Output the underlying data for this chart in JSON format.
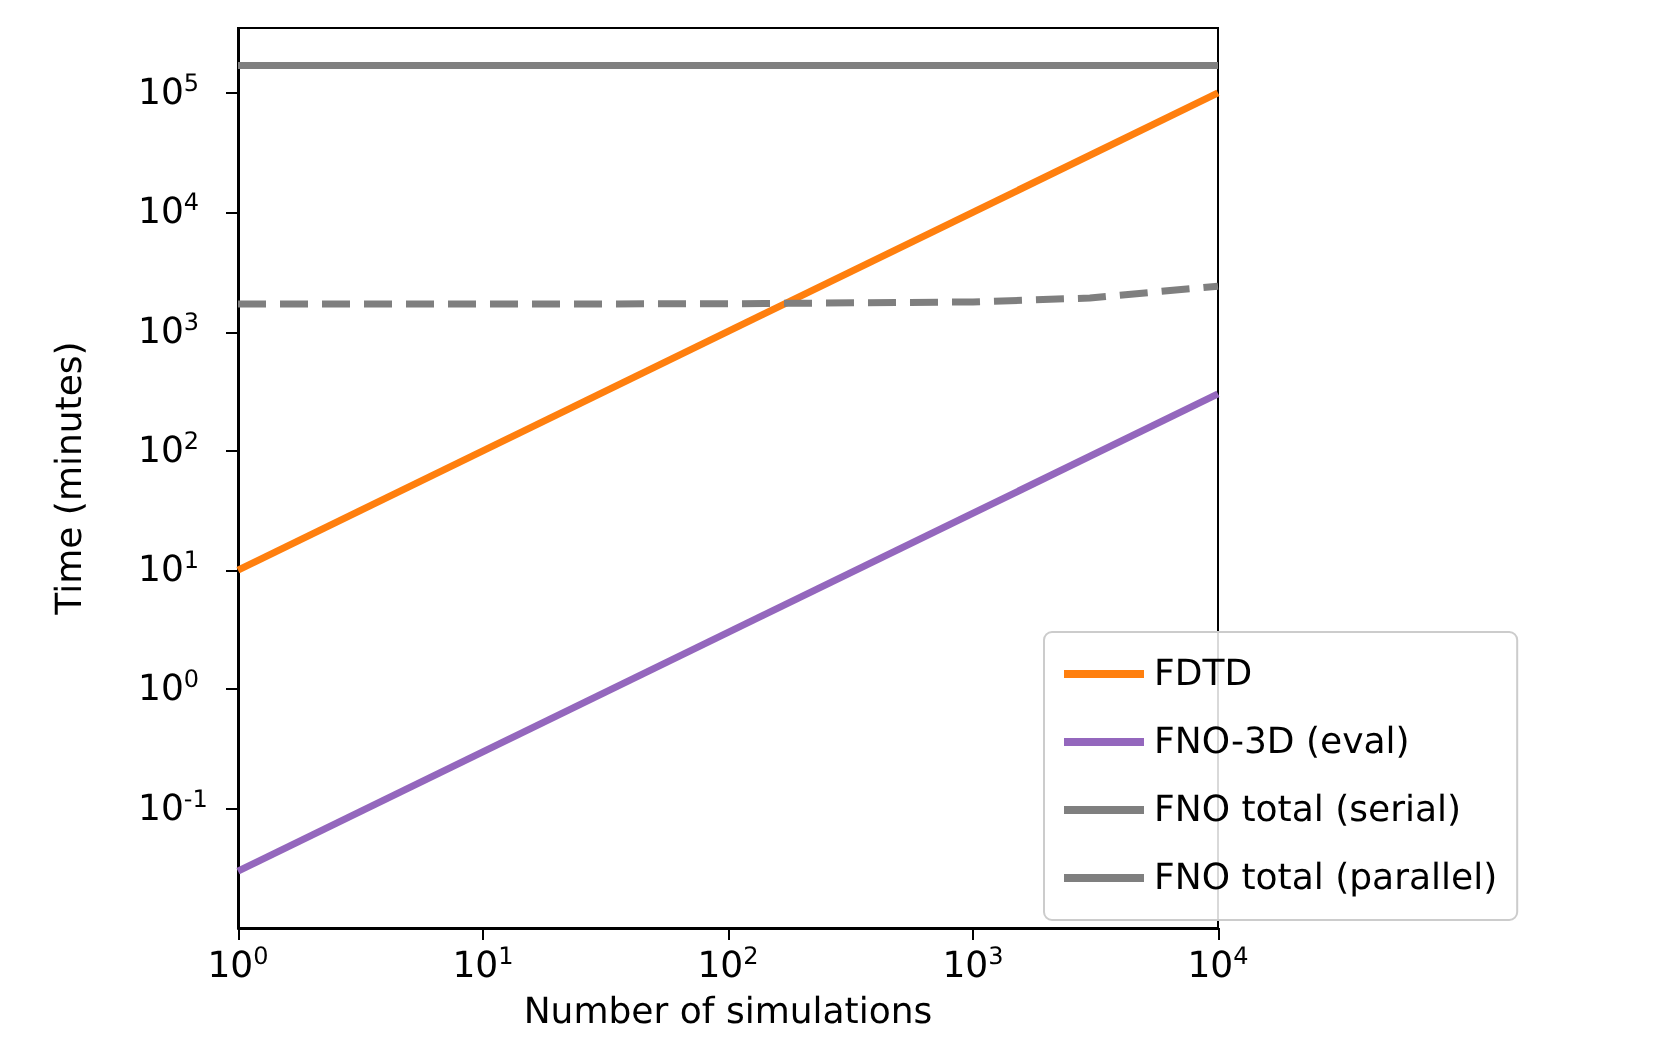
{
  "chart_data": {
    "type": "line",
    "xlabel": "Number of simulations",
    "ylabel": "Time (minutes)",
    "log": "xy",
    "grid": false,
    "legend": "bottom right",
    "marker": "none",
    "xlim": [
      1,
      10000
    ],
    "xticks": [
      {
        "value": 1,
        "label": "10$^{0}$"
      },
      {
        "value": 10,
        "label": "10$^{1}$"
      },
      {
        "value": 100,
        "label": "10$^{2}$"
      },
      {
        "value": 1000,
        "label": "10$^{3}$"
      },
      {
        "value": 10000,
        "label": "10$^{4}$"
      }
    ],
    "ylim": [
      0.01,
      350000
    ],
    "yticks": [
      {
        "value": 0.1,
        "label": "10$^{-1}$"
      },
      {
        "value": 1,
        "label": "10$^{0}$"
      },
      {
        "value": 10,
        "label": "10$^{1}$"
      },
      {
        "value": 100,
        "label": "10$^{2}$"
      },
      {
        "value": 1000,
        "label": "10$^{3}$"
      },
      {
        "value": 10000,
        "label": "10$^{4}$"
      },
      {
        "value": 100000,
        "label": "10$^{5}$"
      }
    ],
    "series": [
      {
        "name": "FDTD",
        "color": "#ff7f0e",
        "x": [
          1,
          10000
        ],
        "values": [
          10,
          100000
        ]
      },
      {
        "name": "FNO-3D (eval)",
        "color": "#9467bd",
        "x": [
          1,
          10000
        ],
        "values": [
          0.03,
          300
        ]
      },
      {
        "name": "FNO total (serial)",
        "color": "#7f7f7f",
        "x": [
          1,
          10000
        ],
        "values": [
          170000,
          170000
        ]
      },
      {
        "name": "FNO total (parallel)",
        "color": "#7f7f7f",
        "line_style": "dashed",
        "x": [
          1,
          10,
          100,
          1000,
          3000,
          10000
        ],
        "values": [
          1700,
          1700,
          1707,
          1770,
          1910,
          2400
        ]
      }
    ]
  }
}
